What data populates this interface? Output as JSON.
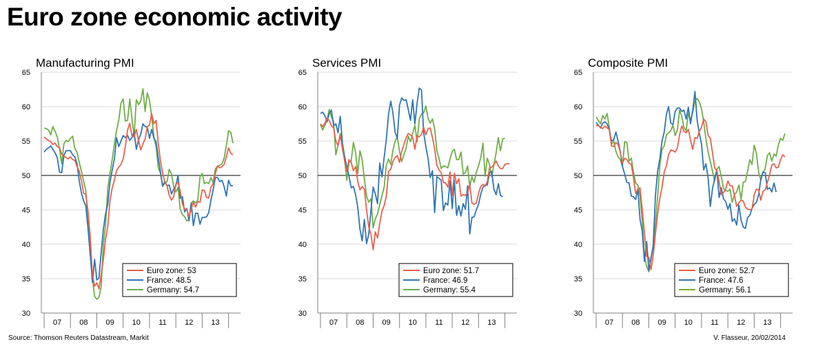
{
  "page": {
    "title": "Euro zone economic activity",
    "source": "Source: Thomson Reuters Datastream, Markit",
    "author": "V. Flasseur, 20/02/2014"
  },
  "colors": {
    "euro_zone": "#e8604c",
    "france": "#2e75b6",
    "germany": "#70ad47",
    "grid": "#d9d9d9",
    "axis": "#808080"
  },
  "chart_data": [
    {
      "type": "line",
      "title": "Manufacturing PMI",
      "ylim": [
        30,
        65
      ],
      "yticks": [
        30,
        35,
        40,
        45,
        50,
        55,
        60,
        65
      ],
      "reference_line": 50,
      "x_start": "2007-01",
      "xticklabels": [
        "07",
        "08",
        "09",
        "10",
        "11",
        "12",
        "13"
      ],
      "grid": true,
      "legend_position": "bottom-right",
      "series": [
        {
          "name": "Euro zone",
          "legend_label": "Euro zone: 53",
          "color": "#e8604c",
          "values": [
            55.6,
            55.3,
            55.1,
            54.9,
            54.5,
            54.7,
            54.2,
            54.0,
            53.1,
            52.8,
            52.6,
            52.4,
            52.7,
            52.3,
            52.2,
            51.3,
            50.6,
            49.2,
            47.4,
            47.3,
            44.8,
            41.1,
            35.6,
            33.9,
            34.4,
            33.5,
            35.6,
            37.8,
            40.7,
            42.6,
            46.3,
            48.2,
            49.3,
            50.7,
            51.2,
            51.6,
            52.4,
            54.2,
            56.6,
            57.6,
            55.8,
            55.6,
            56.7,
            55.1,
            53.7,
            54.6,
            55.3,
            57.1,
            57.3,
            59.0,
            57.5,
            58.0,
            54.6,
            52.0,
            50.4,
            49.0,
            48.5,
            47.1,
            46.4,
            46.9,
            48.8,
            49.0,
            47.7,
            45.9,
            45.1,
            45.1,
            44.0,
            45.1,
            46.1,
            45.4,
            46.2,
            46.1,
            47.9,
            47.8,
            46.8,
            46.7,
            48.3,
            48.8,
            50.3,
            51.4,
            51.1,
            51.3,
            51.6,
            52.7,
            54.0,
            53.2,
            53.0
          ]
        },
        {
          "name": "France",
          "legend_label": "France: 48.5",
          "color": "#2e75b6",
          "values": [
            53.4,
            53.8,
            54.0,
            54.3,
            53.8,
            53.3,
            52.6,
            50.5,
            50.4,
            52.9,
            53.6,
            53.6,
            53.6,
            53.0,
            52.7,
            51.7,
            49.2,
            47.4,
            46.3,
            45.6,
            42.3,
            38.5,
            34.5,
            37.8,
            34.8,
            35.1,
            38.8,
            42.2,
            44.4,
            45.8,
            49.0,
            50.8,
            52.4,
            55.5,
            54.2,
            55.0,
            55.8,
            55.5,
            55.8,
            55.1,
            55.5,
            56.3,
            53.8,
            55.2,
            56.0,
            57.5,
            57.1,
            57.0,
            55.4,
            56.7,
            55.4,
            54.9,
            52.5,
            50.5,
            48.5,
            49.1,
            48.5,
            48.6,
            47.3,
            48.0,
            48.5,
            50.0,
            46.7,
            46.9,
            44.7,
            45.2,
            43.4,
            46.0,
            42.7,
            44.5,
            44.5,
            42.9,
            43.9,
            43.9,
            44.0,
            44.6,
            46.4,
            47.9,
            49.7,
            49.7,
            49.1,
            49.3,
            48.4,
            47.0,
            49.3,
            48.5,
            48.5
          ]
        },
        {
          "name": "Germany",
          "legend_label": "Germany: 54.7",
          "color": "#70ad47",
          "values": [
            56.9,
            56.8,
            56.6,
            55.9,
            57.1,
            56.4,
            55.6,
            53.9,
            51.7,
            54.6,
            55.1,
            54.9,
            55.4,
            55.7,
            53.9,
            53.4,
            51.9,
            50.6,
            49.2,
            47.8,
            43.4,
            39.5,
            35.0,
            32.4,
            32.0,
            32.3,
            33.8,
            40.0,
            42.9,
            48.2,
            50.3,
            52.3,
            54.6,
            56.5,
            58.0,
            60.5,
            61.1,
            57.9,
            58.0,
            61.1,
            58.3,
            55.7,
            61.0,
            60.3,
            60.8,
            62.6,
            59.3,
            62.0,
            60.9,
            58.6,
            55.6,
            54.2,
            51.1,
            50.3,
            48.4,
            48.9,
            49.1,
            50.9,
            50.2,
            48.4,
            47.6,
            48.3,
            45.1,
            44.3,
            44.0,
            43.4,
            43.6,
            46.0,
            46.3,
            46.0,
            46.4,
            49.8,
            50.3,
            48.8,
            49.0,
            48.8,
            49.7,
            48.9,
            51.0,
            51.3,
            51.5,
            51.7,
            52.5,
            54.3,
            56.5,
            56.3,
            54.7
          ]
        }
      ]
    },
    {
      "type": "line",
      "title": "Services PMI",
      "ylim": [
        30,
        65
      ],
      "yticks": [
        30,
        35,
        40,
        45,
        50,
        55,
        60,
        65
      ],
      "reference_line": 50,
      "x_start": "2007-01",
      "xticklabels": [
        "07",
        "08",
        "09",
        "10",
        "11",
        "12",
        "13"
      ],
      "grid": true,
      "legend_position": "bottom-right",
      "series": [
        {
          "name": "Euro zone",
          "legend_label": "Euro zone: 51.7",
          "color": "#e8604c",
          "values": [
            57.5,
            57.1,
            57.6,
            58.3,
            58.0,
            57.2,
            56.9,
            55.0,
            54.3,
            55.8,
            54.1,
            52.1,
            50.6,
            52.3,
            51.9,
            50.7,
            51.3,
            49.1,
            47.9,
            48.4,
            48.0,
            45.0,
            42.5,
            41.4,
            39.2,
            41.8,
            40.9,
            43.0,
            44.8,
            45.6,
            47.0,
            50.6,
            50.9,
            52.0,
            52.6,
            52.9,
            51.9,
            53.5,
            54.5,
            55.5,
            56.1,
            55.9,
            55.5,
            53.8,
            55.8,
            55.6,
            56.0,
            57.0,
            55.9,
            56.8,
            56.9,
            55.5,
            53.9,
            51.5,
            50.8,
            50.4,
            49.0,
            48.9,
            48.3,
            50.5,
            47.1,
            50.3,
            48.8,
            49.5,
            47.0,
            47.2,
            47.1,
            47.5,
            48.7,
            46.0,
            45.8,
            46.0,
            47.4,
            48.4,
            48.7,
            48.4,
            49.1,
            51.1,
            51.2,
            51.6,
            52.1,
            51.4,
            51.0,
            51.0,
            51.6,
            51.7,
            51.7
          ]
        },
        {
          "name": "France",
          "legend_label": "France: 46.9",
          "color": "#2e75b6",
          "values": [
            59.0,
            59.2,
            58.7,
            57.8,
            59.0,
            59.5,
            57.2,
            57.5,
            56.2,
            58.6,
            54.7,
            52.8,
            51.2,
            49.9,
            48.2,
            48.4,
            47.2,
            45.3,
            42.2,
            40.5,
            43.6,
            40.1,
            41.5,
            45.0,
            48.3,
            47.3,
            45.9,
            51.8,
            49.8,
            52.6,
            55.3,
            58.9,
            60.8,
            59.1,
            56.3,
            55.4,
            60.2,
            61.3,
            60.9,
            61.0,
            59.6,
            58.0,
            61.0,
            57.5,
            60.5,
            62.7,
            62.4,
            56.2,
            54.2,
            52.5,
            49.7,
            50.7,
            44.6,
            49.8,
            49.6,
            49.3,
            44.9,
            46.0,
            45.7,
            49.2,
            45.2,
            49.3,
            44.2,
            45.6,
            44.1,
            45.9,
            45.1,
            48.5,
            41.5,
            43.9,
            44.0,
            45.0,
            45.8,
            47.3,
            48.3,
            48.6,
            48.6,
            50.4,
            50.6,
            48.0,
            47.2,
            48.8,
            47.1,
            46.9
          ]
        },
        {
          "name": "Germany",
          "legend_label": "Germany: 55.4",
          "color": "#70ad47",
          "values": [
            57.4,
            56.6,
            57.3,
            58.1,
            59.6,
            58.5,
            57.8,
            53.0,
            54.4,
            56.1,
            53.8,
            52.4,
            49.3,
            51.9,
            52.1,
            54.8,
            53.3,
            50.3,
            53.6,
            52.3,
            49.5,
            47.0,
            46.1,
            46.6,
            42.4,
            43.7,
            44.4,
            45.8,
            47.0,
            48.3,
            51.5,
            52.4,
            51.6,
            53.6,
            55.0,
            55.6,
            53.5,
            52.0,
            53.0,
            54.0,
            55.7,
            54.9,
            56.1,
            57.3,
            54.9,
            58.2,
            58.9,
            59.1,
            60.1,
            58.3,
            57.6,
            58.2,
            56.8,
            53.6,
            52.5,
            51.0,
            51.4,
            51.3,
            51.1,
            52.4,
            53.5,
            53.8,
            52.3,
            52.3,
            53.4,
            50.2,
            50.4,
            51.4,
            48.4,
            49.8,
            49.0,
            50.5,
            51.4,
            52.6,
            54.7,
            49.9,
            52.5,
            51.6,
            49.8,
            51.6,
            53.3,
            55.5,
            53.6,
            55.3,
            55.4
          ]
        }
      ]
    },
    {
      "type": "line",
      "title": "Composite PMI",
      "ylim": [
        30,
        65
      ],
      "yticks": [
        30,
        35,
        40,
        45,
        50,
        55,
        60,
        65
      ],
      "reference_line": 50,
      "x_start": "2007-01",
      "xticklabels": [
        "07",
        "08",
        "09",
        "10",
        "11",
        "12",
        "13"
      ],
      "grid": true,
      "legend_position": "bottom-right",
      "series": [
        {
          "name": "Euro zone",
          "legend_label": "Euro zone: 52.7",
          "color": "#e8604c",
          "values": [
            57.3,
            57.2,
            57.0,
            56.8,
            57.2,
            56.9,
            56.7,
            54.3,
            54.2,
            54.8,
            54.5,
            53.4,
            51.8,
            52.5,
            52.3,
            51.8,
            51.6,
            49.7,
            47.4,
            48.0,
            48.2,
            45.0,
            41.7,
            38.2,
            38.1,
            36.3,
            38.3,
            41.5,
            44.4,
            46.7,
            48.2,
            50.5,
            51.4,
            53.0,
            53.7,
            53.6,
            53.4,
            54.0,
            55.9,
            57.2,
            56.4,
            56.2,
            56.7,
            55.1,
            53.8,
            55.5,
            55.4,
            56.4,
            57.0,
            58.2,
            57.8,
            55.8,
            55.4,
            53.3,
            51.1,
            50.7,
            49.1,
            47.2,
            47.5,
            48.0,
            49.2,
            48.5,
            48.5,
            47.1,
            45.5,
            46.0,
            46.4,
            46.3,
            45.4,
            45.1,
            45.0,
            45.1,
            47.2,
            48.0,
            47.9,
            46.4,
            47.7,
            47.9,
            49.0,
            50.1,
            51.5,
            51.7,
            51.1,
            51.2,
            52.3,
            53.0,
            52.7
          ]
        },
        {
          "name": "France",
          "legend_label": "France: 47.6",
          "color": "#2e75b6",
          "values": [
            57.7,
            57.3,
            56.9,
            57.6,
            57.8,
            57.5,
            56.6,
            55.0,
            55.2,
            56.3,
            55.0,
            53.5,
            51.3,
            50.2,
            49.0,
            48.9,
            47.0,
            46.9,
            46.5,
            48.0,
            43.6,
            41.9,
            37.5,
            40.4,
            36.2,
            38.0,
            39.8,
            47.0,
            50.6,
            52.4,
            55.0,
            56.3,
            58.9,
            60.0,
            57.6,
            57.4,
            59.3,
            59.8,
            59.8,
            59.3,
            59.5,
            58.2,
            59.9,
            57.5,
            59.5,
            62.2,
            58.0,
            56.1,
            54.6,
            50.8,
            51.7,
            49.6,
            45.5,
            48.1,
            49.5,
            50.8,
            46.8,
            48.2,
            46.6,
            46.2,
            45.1,
            45.9,
            43.3,
            43.7,
            42.8,
            45.7,
            43.5,
            42.5,
            42.3,
            43.9,
            44.2,
            45.2,
            45.8,
            46.1,
            47.2,
            49.4,
            50.5,
            50.4,
            48.0,
            48.2,
            47.6,
            48.9,
            47.6
          ]
        },
        {
          "name": "Germany",
          "legend_label": "Germany: 56.1",
          "color": "#70ad47",
          "values": [
            58.5,
            58.0,
            57.5,
            58.7,
            58.2,
            59.0,
            57.0,
            54.5,
            55.0,
            53.5,
            52.7,
            52.3,
            51.3,
            54.9,
            54.8,
            52.1,
            52.5,
            50.5,
            48.9,
            48.6,
            47.0,
            43.4,
            38.3,
            36.8,
            36.0,
            37.8,
            39.7,
            43.0,
            46.9,
            51.4,
            53.8,
            54.3,
            55.9,
            56.2,
            56.5,
            57.3,
            55.8,
            56.6,
            59.5,
            58.6,
            57.0,
            56.5,
            59.0,
            58.0,
            59.2,
            60.8,
            61.2,
            60.7,
            59.7,
            57.8,
            55.3,
            53.4,
            52.0,
            50.6,
            49.2,
            50.9,
            51.3,
            49.8,
            48.1,
            47.8,
            47.7,
            48.0,
            46.1,
            47.2,
            47.6,
            48.6,
            46.5,
            49.0,
            49.1,
            50.6,
            52.3,
            51.6,
            54.4,
            53.2,
            50.5,
            49.3,
            50.4,
            51.0,
            52.9,
            53.3,
            52.1,
            53.1,
            52.8,
            54.4,
            55.4,
            55.1,
            56.1
          ]
        }
      ]
    }
  ]
}
